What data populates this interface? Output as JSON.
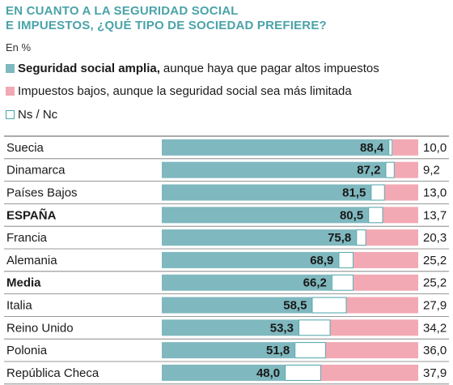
{
  "chart_data": {
    "type": "bar",
    "stacked": true,
    "orientation": "horizontal",
    "title_lines": [
      "EN CUANTO A LA SEGURIDAD SOCIAL",
      "E IMPUESTOS, ¿QUÉ TIPO DE SOCIEDAD PREFIERE?"
    ],
    "unit_label": "En %",
    "xlim": [
      0,
      100
    ],
    "grid": false,
    "legend_position": "top",
    "categories": [
      "Suecia",
      "Dinamarca",
      "Países Bajos",
      "ESPAÑA",
      "Francia",
      "Alemania",
      "Media",
      "Italia",
      "Reino Unido",
      "Polonia",
      "República Checa"
    ],
    "bold_categories": [
      "ESPAÑA",
      "Media"
    ],
    "series": [
      {
        "name": "Seguridad social amplia, aunque haya que pagar altos impuestos",
        "name_bold": "Seguridad social amplia,",
        "name_rest": "aunque haya que pagar altos impuestos",
        "color": "#7fb8bf",
        "values": [
          88.4,
          87.2,
          81.5,
          80.5,
          75.8,
          68.9,
          66.2,
          58.5,
          53.3,
          51.8,
          48.0
        ],
        "labels": [
          "88,4",
          "87,2",
          "81,5",
          "80,5",
          "75,8",
          "68,9",
          "66,2",
          "58,5",
          "53,3",
          "51,8",
          "48,0"
        ]
      },
      {
        "name": "Ns / Nc",
        "color": "#ffffff",
        "values": [
          1.6,
          3.6,
          5.5,
          5.8,
          3.9,
          5.9,
          8.6,
          13.6,
          12.5,
          12.2,
          14.1
        ]
      },
      {
        "name": "Impuestos bajos, aunque la seguridad social sea más limitada",
        "color": "#f2a9b3",
        "values": [
          10.0,
          9.2,
          13.0,
          13.7,
          20.3,
          25.2,
          25.2,
          27.9,
          34.2,
          36.0,
          37.9
        ],
        "labels": [
          "10,0",
          "9,2",
          "13,0",
          "13,7",
          "20,3",
          "25,2",
          "25,2",
          "27,9",
          "34,2",
          "36,0",
          "37,9"
        ]
      }
    ],
    "legend_order": [
      0,
      2,
      1
    ]
  }
}
